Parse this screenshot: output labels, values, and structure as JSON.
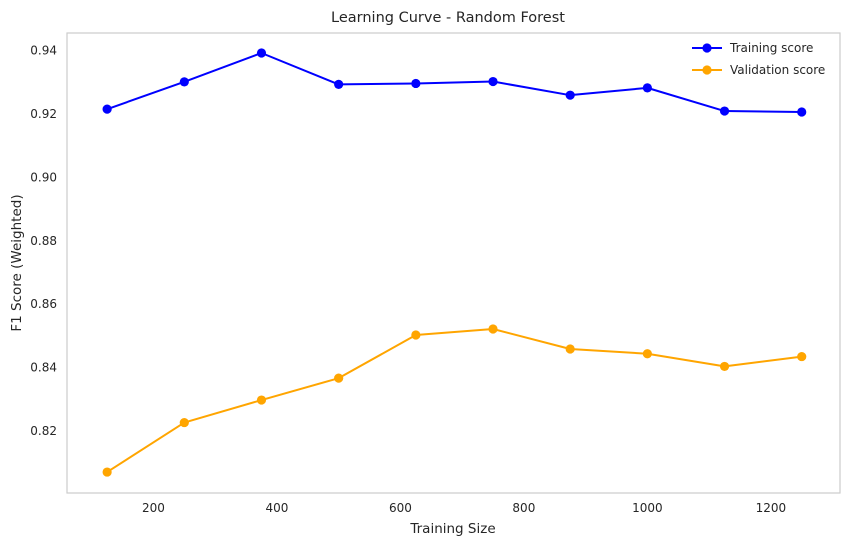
{
  "chart_data": {
    "type": "line",
    "title": "Learning Curve - Random Forest",
    "xlabel": "Training Size",
    "ylabel": "F1 Score (Weighted)",
    "xlim": [
      60,
      1312
    ],
    "ylim": [
      0.8005,
      0.9455
    ],
    "xticks": [
      200,
      400,
      600,
      800,
      1000,
      1200
    ],
    "xtick_labels": [
      "200",
      "400",
      "600",
      "800",
      "1000",
      "1200"
    ],
    "yticks": [
      0.82,
      0.84,
      0.86,
      0.88,
      0.9,
      0.92,
      0.94
    ],
    "ytick_labels": [
      "0.82",
      "0.84",
      "0.86",
      "0.88",
      "0.90",
      "0.92",
      "0.94"
    ],
    "grid": false,
    "legend": "top-right",
    "x": [
      125,
      250,
      375,
      500,
      625,
      750,
      875,
      1000,
      1125,
      1250
    ],
    "series": [
      {
        "name": "Training score",
        "color": "#0000ff",
        "values": [
          0.9215,
          0.9301,
          0.9392,
          0.9293,
          0.9296,
          0.9302,
          0.9259,
          0.9282,
          0.9209,
          0.9206
        ]
      },
      {
        "name": "Validation score",
        "color": "#ffa500",
        "values": [
          0.8071,
          0.8227,
          0.8298,
          0.8367,
          0.8503,
          0.8522,
          0.8459,
          0.8444,
          0.8404,
          0.8435
        ]
      }
    ]
  }
}
